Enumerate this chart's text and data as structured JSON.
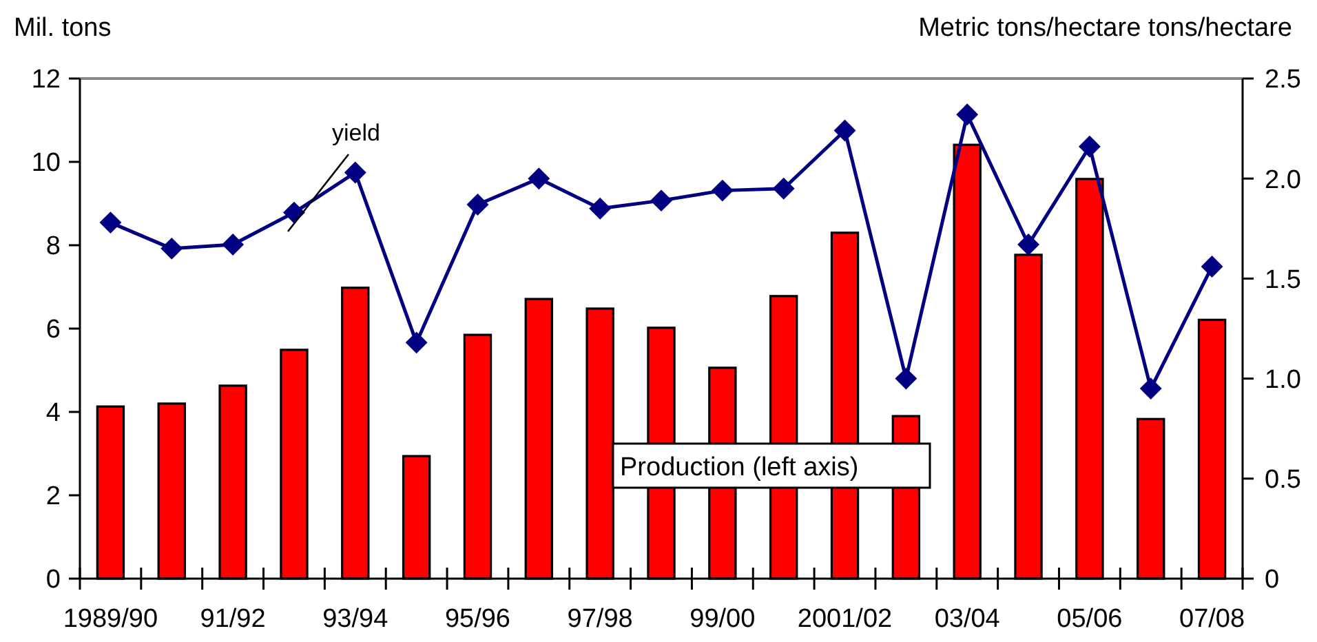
{
  "chart_data": {
    "type": "bar",
    "ylabel": "Mil. tons",
    "y2label": "Metric tons/hectare tons/hectare",
    "categories": [
      "1989/90",
      null,
      "91/92",
      null,
      "93/94",
      null,
      "95/96",
      null,
      "97/98",
      null,
      "99/00",
      null,
      "2001/02",
      null,
      "03/04",
      null,
      "05/06",
      null,
      "07/08"
    ],
    "series": [
      {
        "name": "Production (left axis)",
        "color": "#ff0000",
        "values": [
          4.13,
          4.2,
          4.63,
          5.49,
          6.98,
          2.94,
          5.85,
          6.71,
          6.48,
          6.02,
          5.06,
          6.78,
          8.3,
          3.9,
          10.41,
          7.77,
          9.59,
          3.83,
          6.21
        ]
      },
      {
        "name": "yield",
        "type": "line",
        "axis": "y2",
        "color": "#000080",
        "marker": "diamond",
        "line_style": "solid",
        "values": [
          1.78,
          1.65,
          1.67,
          1.83,
          2.03,
          1.18,
          1.87,
          2.0,
          1.85,
          1.89,
          1.94,
          1.95,
          2.24,
          1.0,
          2.32,
          1.67,
          2.16,
          0.95,
          1.56
        ]
      }
    ],
    "ylim": [
      0,
      12
    ],
    "yticks": [
      0,
      2,
      4,
      6,
      8,
      10,
      12
    ],
    "y2lim": [
      0,
      2.5
    ],
    "y2ticks": [
      0,
      0.5,
      {
        "value": 1,
        "label": "1.0"
      },
      1.5,
      {
        "value": 2,
        "label": "2.0"
      },
      2.5
    ],
    "grid": false,
    "legend": false
  }
}
